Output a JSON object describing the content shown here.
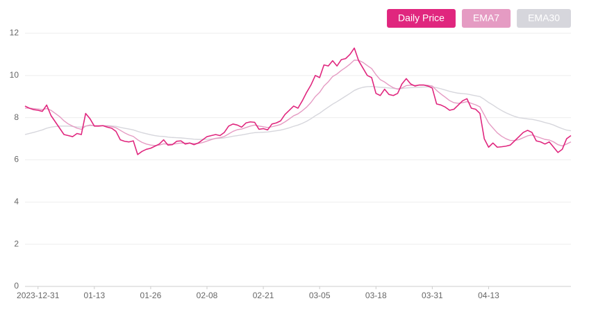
{
  "chart_data": {
    "type": "line",
    "legend": "top-right",
    "grid": true,
    "ylim": [
      0,
      12
    ],
    "yticks": [
      0,
      2,
      4,
      6,
      8,
      10,
      12
    ],
    "categories": [
      null,
      null,
      null,
      "2023-12-31",
      null,
      null,
      null,
      null,
      null,
      null,
      null,
      null,
      null,
      null,
      null,
      null,
      "01-13",
      null,
      null,
      null,
      null,
      null,
      null,
      null,
      null,
      null,
      null,
      null,
      null,
      "01-26",
      null,
      null,
      null,
      null,
      null,
      null,
      null,
      null,
      null,
      null,
      null,
      null,
      "02-08",
      null,
      null,
      null,
      null,
      null,
      null,
      null,
      null,
      null,
      null,
      null,
      null,
      "02-21",
      null,
      null,
      null,
      null,
      null,
      null,
      null,
      null,
      null,
      null,
      null,
      null,
      "03-05",
      null,
      null,
      null,
      null,
      null,
      null,
      null,
      null,
      null,
      null,
      null,
      null,
      "03-18",
      null,
      null,
      null,
      null,
      null,
      null,
      null,
      null,
      null,
      null,
      null,
      null,
      "03-31",
      null,
      null,
      null,
      null,
      null,
      null,
      null,
      null,
      null,
      null,
      null,
      null,
      "04-13",
      null,
      null,
      null,
      null,
      null,
      null,
      null,
      null,
      null,
      null,
      null,
      null,
      null,
      null,
      null,
      null,
      null,
      null,
      null
    ],
    "series": [
      {
        "name": "Daily Price",
        "color": "#e0267e",
        "values": [
          8.55,
          8.45,
          8.38,
          8.35,
          8.3,
          8.6,
          8.1,
          7.8,
          7.5,
          7.2,
          7.15,
          7.1,
          7.25,
          7.2,
          8.2,
          7.95,
          7.6,
          7.6,
          7.62,
          7.55,
          7.5,
          7.35,
          6.95,
          6.88,
          6.85,
          6.9,
          6.25,
          6.4,
          6.5,
          6.55,
          6.65,
          6.75,
          6.95,
          6.7,
          6.72,
          6.88,
          6.9,
          6.75,
          6.8,
          6.72,
          6.8,
          6.95,
          7.1,
          7.15,
          7.2,
          7.15,
          7.3,
          7.6,
          7.7,
          7.65,
          7.55,
          7.75,
          7.8,
          7.78,
          7.45,
          7.48,
          7.42,
          7.7,
          7.75,
          7.85,
          8.15,
          8.35,
          8.55,
          8.45,
          8.8,
          9.2,
          9.55,
          10.0,
          9.9,
          10.5,
          10.45,
          10.7,
          10.45,
          10.75,
          10.8,
          11.0,
          11.3,
          10.7,
          10.35,
          10.0,
          9.9,
          9.15,
          9.05,
          9.35,
          9.1,
          9.05,
          9.15,
          9.6,
          9.85,
          9.6,
          9.5,
          9.55,
          9.55,
          9.5,
          9.4,
          8.65,
          8.6,
          8.5,
          8.35,
          8.4,
          8.6,
          8.8,
          8.9,
          8.45,
          8.4,
          8.2,
          7.0,
          6.6,
          6.8,
          6.6,
          6.62,
          6.65,
          6.7,
          6.9,
          7.1,
          7.3,
          7.4,
          7.3,
          6.9,
          6.85,
          6.75,
          6.85,
          6.6,
          6.35,
          6.5,
          7.0,
          7.15
        ]
      },
      {
        "name": "EMA7",
        "color": "#e59bc3",
        "values": [
          8.45,
          8.45,
          8.43,
          8.41,
          8.38,
          8.43,
          8.35,
          8.2,
          8.05,
          7.85,
          7.7,
          7.6,
          7.5,
          7.45,
          7.6,
          7.65,
          7.62,
          7.62,
          7.62,
          7.6,
          7.58,
          7.52,
          7.4,
          7.28,
          7.18,
          7.11,
          6.95,
          6.83,
          6.75,
          6.7,
          6.68,
          6.7,
          6.76,
          6.74,
          6.74,
          6.77,
          6.8,
          6.79,
          6.79,
          6.77,
          6.78,
          6.82,
          6.89,
          6.96,
          7.02,
          7.05,
          7.11,
          7.23,
          7.35,
          7.43,
          7.46,
          7.53,
          7.6,
          7.65,
          7.6,
          7.57,
          7.53,
          7.57,
          7.62,
          7.68,
          7.8,
          7.94,
          8.09,
          8.18,
          8.33,
          8.5,
          8.72,
          9.0,
          9.2,
          9.5,
          9.7,
          9.95,
          10.07,
          10.24,
          10.38,
          10.54,
          10.73,
          10.72,
          10.62,
          10.47,
          10.33,
          10.04,
          9.8,
          9.69,
          9.54,
          9.42,
          9.35,
          9.41,
          9.52,
          9.54,
          9.53,
          9.54,
          9.54,
          9.53,
          9.5,
          9.29,
          9.12,
          8.97,
          8.81,
          8.71,
          8.68,
          8.71,
          8.76,
          8.68,
          8.61,
          8.51,
          8.13,
          7.75,
          7.51,
          7.28,
          7.12,
          7.0,
          6.92,
          6.92,
          6.96,
          7.05,
          7.14,
          7.18,
          7.11,
          7.04,
          6.97,
          6.94,
          6.85,
          6.72,
          6.66,
          6.75,
          6.85
        ]
      },
      {
        "name": "EMA30",
        "color": "#d6d6dc",
        "values": [
          7.2,
          7.25,
          7.3,
          7.36,
          7.42,
          7.5,
          7.55,
          7.58,
          7.6,
          7.6,
          7.6,
          7.58,
          7.56,
          7.55,
          7.6,
          7.62,
          7.62,
          7.62,
          7.62,
          7.62,
          7.61,
          7.59,
          7.54,
          7.5,
          7.46,
          7.42,
          7.35,
          7.29,
          7.24,
          7.19,
          7.15,
          7.12,
          7.11,
          7.08,
          7.06,
          7.05,
          7.04,
          7.02,
          7.0,
          6.98,
          6.97,
          6.97,
          6.98,
          6.99,
          7.01,
          7.02,
          7.04,
          7.08,
          7.12,
          7.15,
          7.18,
          7.22,
          7.26,
          7.29,
          7.3,
          7.31,
          7.32,
          7.35,
          7.38,
          7.41,
          7.46,
          7.52,
          7.59,
          7.65,
          7.73,
          7.83,
          7.95,
          8.09,
          8.21,
          8.36,
          8.5,
          8.64,
          8.76,
          8.89,
          9.02,
          9.15,
          9.29,
          9.38,
          9.44,
          9.47,
          9.48,
          9.46,
          9.44,
          9.43,
          9.41,
          9.39,
          9.37,
          9.38,
          9.41,
          9.42,
          9.43,
          9.44,
          9.45,
          9.46,
          9.46,
          9.42,
          9.37,
          9.31,
          9.25,
          9.2,
          9.16,
          9.14,
          9.12,
          9.08,
          9.04,
          9.0,
          8.87,
          8.72,
          8.6,
          8.46,
          8.34,
          8.23,
          8.14,
          8.06,
          8.0,
          7.97,
          7.94,
          7.92,
          7.88,
          7.83,
          7.77,
          7.72,
          7.65,
          7.56,
          7.48,
          7.41,
          7.38
        ]
      }
    ]
  }
}
